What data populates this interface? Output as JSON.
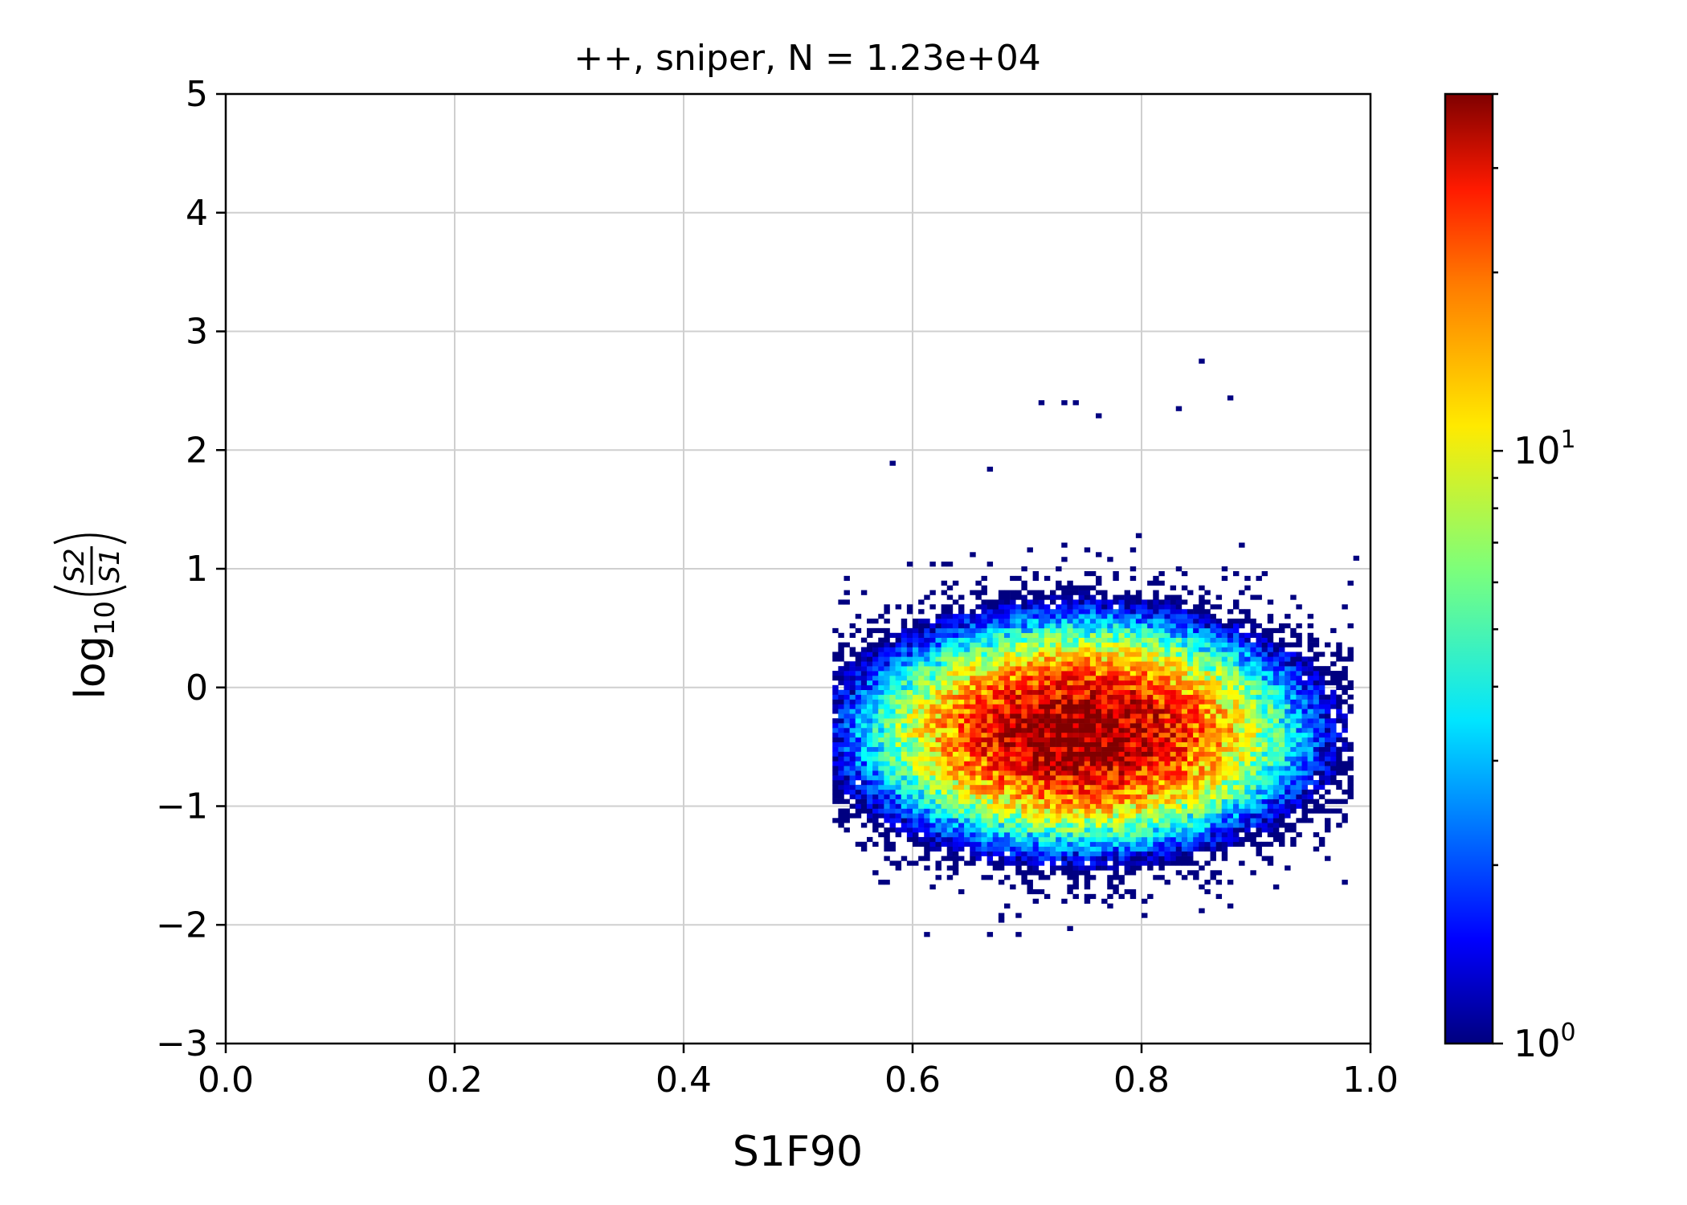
{
  "chart_data": {
    "type": "heatmap",
    "title": "++, sniper, N = 1.23e+04",
    "xlabel": "S1F90",
    "ylabel": {
      "prefix": "log",
      "subscript": "10",
      "numerator": "S2",
      "denominator": "S1"
    },
    "xlim": [
      0.0,
      1.0
    ],
    "ylim": [
      -3,
      5
    ],
    "xticks": [
      {
        "value": 0.0,
        "label": "0.0"
      },
      {
        "value": 0.2,
        "label": "0.2"
      },
      {
        "value": 0.4,
        "label": "0.4"
      },
      {
        "value": 0.6,
        "label": "0.6"
      },
      {
        "value": 0.8,
        "label": "0.8"
      },
      {
        "value": 1.0,
        "label": "1.0"
      }
    ],
    "yticks": [
      {
        "value": 5,
        "label": "5"
      },
      {
        "value": 4,
        "label": "4"
      },
      {
        "value": 3,
        "label": "3"
      },
      {
        "value": 2,
        "label": "2"
      },
      {
        "value": 1,
        "label": "1"
      },
      {
        "value": 0,
        "label": "0"
      },
      {
        "value": -1,
        "label": "−1"
      },
      {
        "value": -2,
        "label": "−2"
      },
      {
        "value": -3,
        "label": "−3"
      }
    ],
    "grid": true,
    "colormap": "jet",
    "color_scale": "log",
    "colorbar": {
      "range": [
        1,
        40
      ],
      "ticks": [
        {
          "value": 1,
          "base": "10",
          "exponent": "0"
        },
        {
          "value": 10,
          "base": "10",
          "exponent": "1"
        }
      ]
    },
    "total_count": 12300,
    "distribution": {
      "peak_x": 0.745,
      "peak_y": -0.4,
      "sigma_x": 0.085,
      "sigma_y": 0.42,
      "x_extent": [
        0.53,
        0.985
      ],
      "y_extent": [
        -2.1,
        2.75
      ],
      "peak_count": 40
    },
    "outliers": [
      {
        "x": 0.85,
        "y": 2.73
      },
      {
        "x": 0.875,
        "y": 2.42
      },
      {
        "x": 0.71,
        "y": 2.38
      },
      {
        "x": 0.73,
        "y": 2.38
      },
      {
        "x": 0.74,
        "y": 2.38
      },
      {
        "x": 0.76,
        "y": 2.27
      },
      {
        "x": 0.83,
        "y": 2.33
      },
      {
        "x": 0.985,
        "y": 1.07
      },
      {
        "x": 0.58,
        "y": 1.87
      },
      {
        "x": 0.665,
        "y": 1.82
      },
      {
        "x": 0.965,
        "y": -0.78
      },
      {
        "x": 0.665,
        "y": -2.1
      },
      {
        "x": 0.69,
        "y": -2.1
      },
      {
        "x": 0.735,
        "y": -2.05
      },
      {
        "x": 0.85,
        "y": -1.9
      }
    ]
  }
}
